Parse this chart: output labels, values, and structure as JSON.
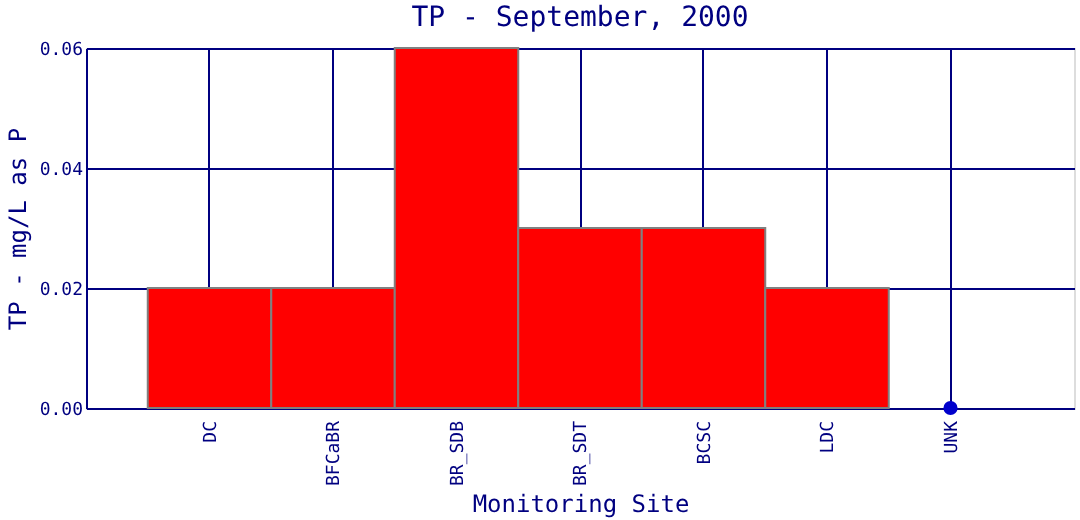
{
  "chart_data": {
    "type": "bar",
    "title": "TP - September, 2000",
    "xlabel": "Monitoring Site",
    "ylabel": "TP - mg/L as P",
    "categories": [
      "DC",
      "BFCaBR",
      "BR_SDB",
      "BR_SDT",
      "BCSC",
      "LDC",
      "UNK"
    ],
    "series": [
      {
        "color": "#ff0000",
        "values": [
          0.02,
          0.02,
          0.06,
          0.03,
          0.03,
          0.02,
          null
        ]
      },
      {
        "type": "scatter",
        "color": "#0000cc",
        "x": [
          "UNK"
        ],
        "values": [
          0
        ]
      }
    ],
    "ylim": [
      0,
      0.06
    ],
    "yticks": [
      {
        "value": 0,
        "label": "0.00"
      },
      {
        "value": 0.02,
        "label": "0.02"
      },
      {
        "value": 0.04,
        "label": "0.04"
      },
      {
        "value": 0.06,
        "label": "0.06"
      }
    ],
    "grid": true,
    "marker": "circle"
  }
}
